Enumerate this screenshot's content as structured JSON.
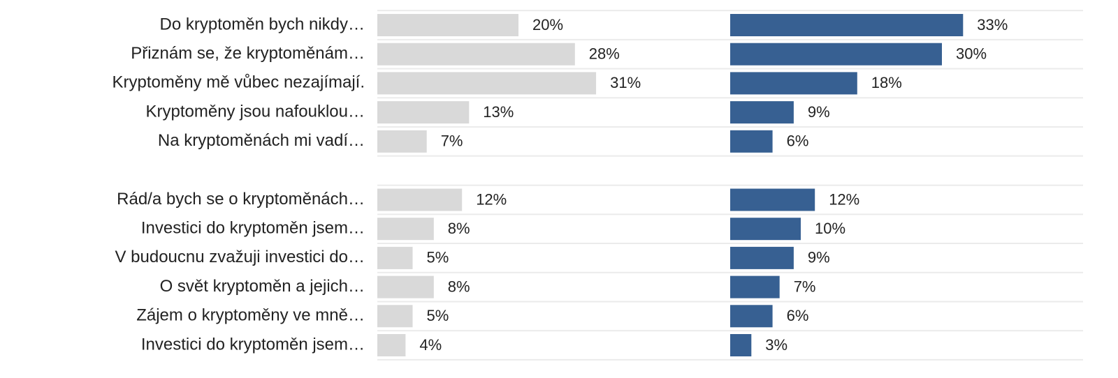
{
  "chart_data": [
    {
      "type": "bar",
      "orientation": "horizontal",
      "categories": [
        "Do kryptoměn bych nikdy…",
        "Přiznám se, že kryptoměnám…",
        "Kryptoměny mě vůbec nezajímají.",
        "Kryptoměny jsou nafouklou…",
        "Na kryptoměnách mi vadí…"
      ],
      "xlim": [
        0,
        50
      ],
      "series": [
        {
          "color": "#d9d9d9",
          "values": [
            20,
            28,
            31,
            13,
            7
          ],
          "value_labels": [
            "20%",
            "28%",
            "31%",
            "13%",
            "7%"
          ]
        },
        {
          "color": "#376092",
          "values": [
            33,
            30,
            18,
            9,
            6
          ],
          "value_labels": [
            "33%",
            "30%",
            "18%",
            "9%",
            "6%"
          ]
        }
      ]
    },
    {
      "type": "bar",
      "orientation": "horizontal",
      "categories": [
        "Rád/a bych se o kryptoměnách…",
        "Investici do kryptoměn jsem…",
        "V budoucnu zvažuji investici do…",
        "O svět kryptoměn a jejich…",
        "Zájem o kryptoměny ve mně…",
        "Investici do kryptoměn jsem…"
      ],
      "xlim": [
        0,
        50
      ],
      "series": [
        {
          "color": "#d9d9d9",
          "values": [
            12,
            8,
            5,
            8,
            5,
            4
          ],
          "value_labels": [
            "12%",
            "8%",
            "5%",
            "8%",
            "5%",
            "4%"
          ]
        },
        {
          "color": "#376092",
          "values": [
            12,
            10,
            9,
            7,
            6,
            3
          ],
          "value_labels": [
            "12%",
            "10%",
            "9%",
            "7%",
            "6%",
            "3%"
          ]
        }
      ]
    }
  ]
}
